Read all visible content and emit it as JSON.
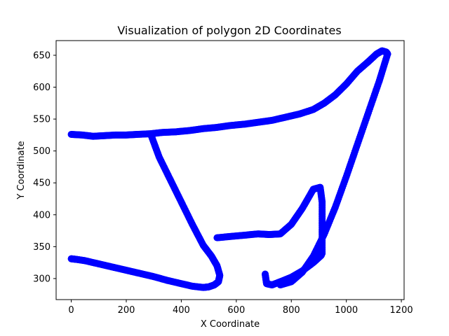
{
  "chart_data": {
    "type": "scatter",
    "title": "Visualization of polygon 2D Coordinates",
    "xlabel": "X Coordinate",
    "ylabel": "Y Coordinate",
    "xlim": [
      -55,
      1210
    ],
    "ylim": [
      267,
      673
    ],
    "xticks": [
      0,
      200,
      400,
      600,
      800,
      1000,
      1200
    ],
    "yticks": [
      300,
      350,
      400,
      450,
      500,
      550,
      600,
      650
    ],
    "grid": false,
    "legend": "none",
    "series": [
      {
        "color": "#0000ff",
        "marker": "o",
        "x": [
          0,
          40,
          80,
          120,
          160,
          200,
          240,
          290,
          330,
          380,
          430,
          480,
          530,
          580,
          630,
          680,
          730,
          780,
          830,
          880,
          920,
          960,
          1000,
          1040,
          1080,
          1110,
          1130,
          1145,
          1150
        ],
        "y": [
          526,
          525,
          523,
          524,
          525,
          525,
          526,
          527,
          529,
          530,
          532,
          535,
          537,
          540,
          542,
          545,
          548,
          553,
          558,
          565,
          575,
          588,
          605,
          625,
          640,
          652,
          657,
          655,
          652
        ]
      },
      {
        "color": "#0000ff",
        "marker": "o",
        "x": [
          1150,
          1120,
          1080,
          1040,
          1000,
          960,
          920,
          880,
          840,
          800,
          760
        ],
        "y": [
          652,
          610,
          560,
          510,
          460,
          412,
          370,
          335,
          310,
          295,
          290
        ]
      },
      {
        "color": "#0000ff",
        "marker": "o",
        "x": [
          290,
          320,
          360,
          400,
          440,
          480,
          510,
          530,
          540,
          535,
          520,
          500,
          480,
          440,
          400,
          350,
          300,
          250,
          200,
          150,
          100,
          50,
          20,
          0
        ],
        "y": [
          525,
          490,
          455,
          420,
          385,
          352,
          335,
          320,
          305,
          295,
          290,
          287,
          286,
          288,
          292,
          297,
          303,
          308,
          313,
          318,
          323,
          328,
          330,
          331
        ]
      },
      {
        "color": "#0000ff",
        "marker": "o",
        "x": [
          530,
          580,
          630,
          680,
          720,
          760,
          800,
          840,
          880,
          905,
          912,
          912,
          912,
          908,
          880,
          840,
          800,
          760,
          730,
          710,
          705
        ],
        "y": [
          364,
          366,
          368,
          370,
          369,
          370,
          385,
          410,
          440,
          443,
          420,
          380,
          340,
          336,
          325,
          312,
          302,
          295,
          290,
          292,
          307
        ]
      }
    ]
  }
}
